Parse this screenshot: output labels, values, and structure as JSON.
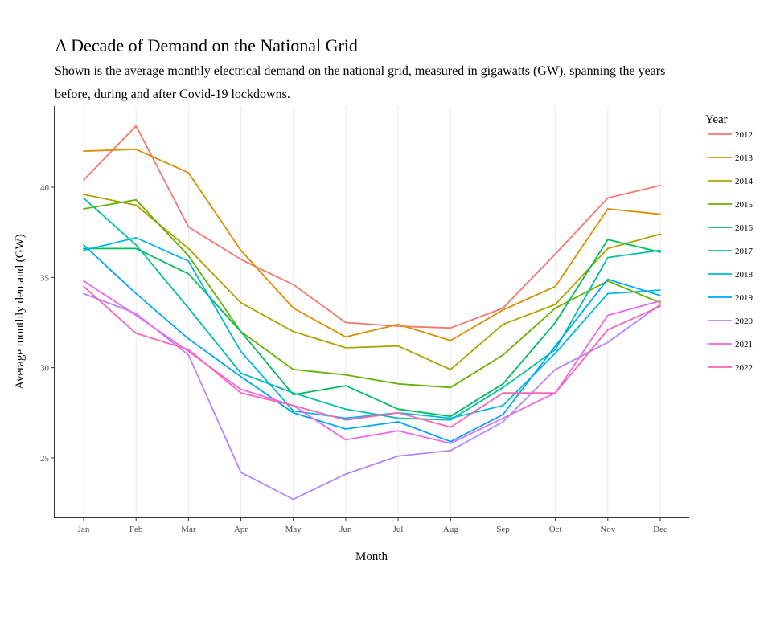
{
  "chart_data": {
    "type": "line",
    "title": "A Decade of Demand on the National Grid",
    "subtitle": "Shown is the average monthly electrical demand on the national grid, measured in gigawatts (GW), spanning the years before, during and after Covid-19 lockdowns.",
    "xlabel": "Month",
    "ylabel": "Average monthly demand (GW)",
    "categories": [
      "Jan",
      "Feb",
      "Mar",
      "Apr",
      "May",
      "Jun",
      "Jul",
      "Aug",
      "Sep",
      "Oct",
      "Nov",
      "Dec"
    ],
    "y_ticks": [
      25,
      30,
      35,
      40
    ],
    "ylim": [
      21.7,
      44.5
    ],
    "grid": "vertical",
    "legend_title": "Year",
    "legend_position": "right",
    "series": [
      {
        "name": "2012",
        "color": "#F8766D",
        "values": [
          40.4,
          43.4,
          37.8,
          36.0,
          34.6,
          32.5,
          32.3,
          32.2,
          33.3,
          36.3,
          39.4,
          40.1
        ]
      },
      {
        "name": "2013",
        "color": "#DB8E00",
        "values": [
          42.0,
          42.1,
          40.8,
          36.5,
          33.3,
          31.7,
          32.4,
          31.5,
          33.2,
          34.5,
          38.8,
          38.5
        ]
      },
      {
        "name": "2014",
        "color": "#AEA200",
        "values": [
          39.6,
          39.0,
          36.6,
          33.6,
          32.0,
          31.1,
          31.2,
          29.9,
          32.4,
          33.5,
          36.6,
          37.4
        ]
      },
      {
        "name": "2015",
        "color": "#64B200",
        "values": [
          38.8,
          39.3,
          36.2,
          32.0,
          29.9,
          29.6,
          29.1,
          28.9,
          30.7,
          33.3,
          34.8,
          33.6
        ]
      },
      {
        "name": "2016",
        "color": "#00BD5C",
        "values": [
          36.6,
          36.6,
          35.2,
          32.0,
          28.5,
          29.0,
          27.7,
          27.3,
          29.1,
          32.5,
          37.1,
          36.4
        ]
      },
      {
        "name": "2017",
        "color": "#00C1A7",
        "values": [
          39.4,
          36.8,
          33.3,
          29.7,
          28.6,
          27.7,
          27.2,
          27.1,
          28.9,
          31.0,
          36.1,
          36.5
        ]
      },
      {
        "name": "2018",
        "color": "#00BADE",
        "values": [
          36.5,
          37.2,
          35.9,
          30.9,
          27.6,
          27.2,
          27.5,
          27.2,
          27.9,
          30.8,
          34.1,
          34.3
        ]
      },
      {
        "name": "2019",
        "color": "#00A6FF",
        "values": [
          36.8,
          34.1,
          31.6,
          29.5,
          27.5,
          26.6,
          27.0,
          25.9,
          27.4,
          31.2,
          34.9,
          34.0
        ]
      },
      {
        "name": "2020",
        "color": "#B385FF",
        "values": [
          34.1,
          33.0,
          30.7,
          24.2,
          22.7,
          24.1,
          25.1,
          25.4,
          27.0,
          29.9,
          31.4,
          33.5
        ]
      },
      {
        "name": "2021",
        "color": "#EF67EB",
        "values": [
          34.8,
          32.9,
          30.9,
          28.8,
          27.9,
          26.0,
          26.5,
          25.8,
          27.2,
          28.6,
          32.9,
          33.7
        ]
      },
      {
        "name": "2022",
        "color": "#FF63B6",
        "values": [
          34.5,
          31.9,
          31.0,
          28.6,
          27.9,
          27.1,
          27.5,
          26.7,
          28.6,
          28.6,
          32.1,
          33.4
        ]
      }
    ]
  }
}
